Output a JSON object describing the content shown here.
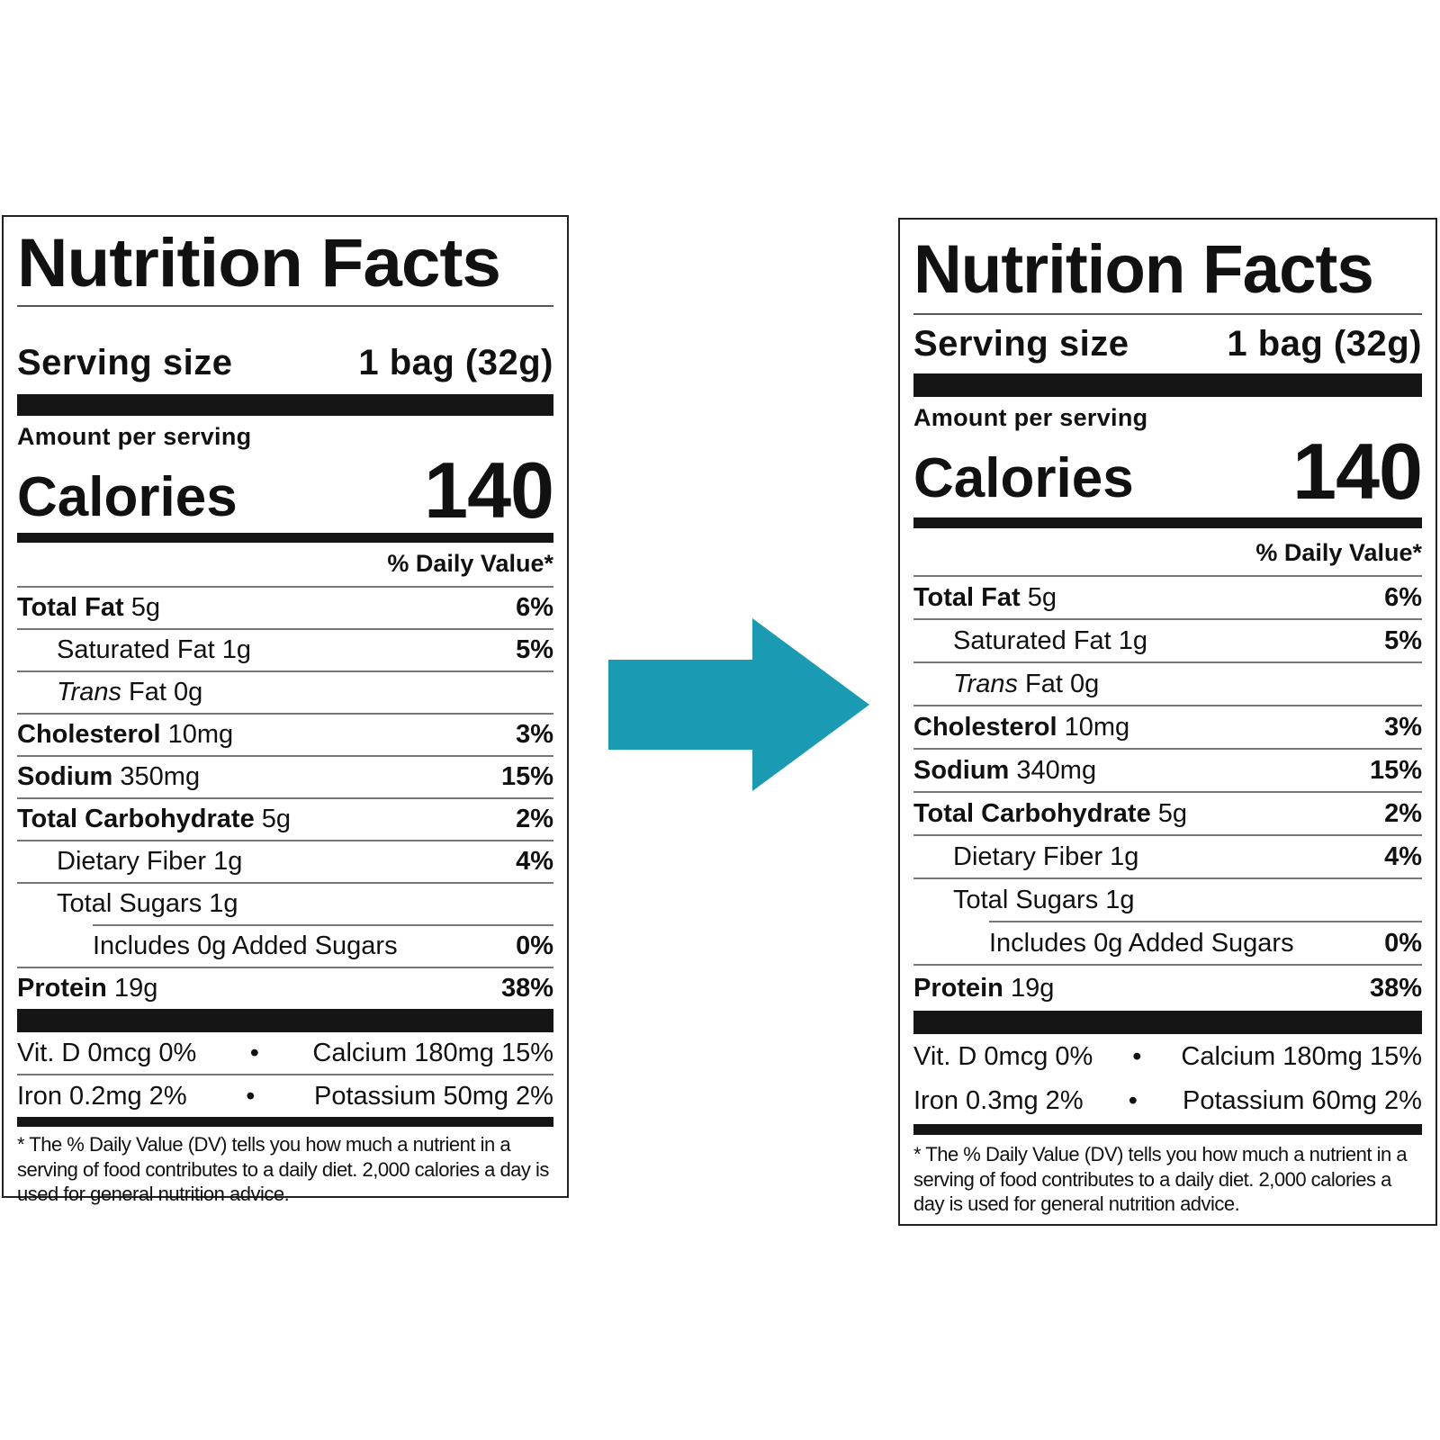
{
  "arrow_color": "#1b9ab3",
  "labels": [
    {
      "title": "Nutrition Facts",
      "serving_label": "Serving size",
      "serving_value": "1 bag (32g)",
      "amount_per_serving": "Amount per serving",
      "calories_label": "Calories",
      "calories_value": "140",
      "dv_header": "% Daily Value*",
      "rows": {
        "total_fat": {
          "name": "Total Fat",
          "amount": "5g",
          "dv": "6%"
        },
        "saturated_fat": {
          "name": "Saturated Fat",
          "amount": "1g",
          "dv": "5%"
        },
        "trans_fat": {
          "name_italic": "Trans",
          "name_rest": "Fat",
          "amount": "0g"
        },
        "cholesterol": {
          "name": "Cholesterol",
          "amount": "10mg",
          "dv": "3%"
        },
        "sodium": {
          "name": "Sodium",
          "amount": "350mg",
          "dv": "15%"
        },
        "total_carb": {
          "name": "Total Carbohydrate",
          "amount": "5g",
          "dv": "2%"
        },
        "fiber": {
          "name": "Dietary Fiber",
          "amount": "1g",
          "dv": "4%"
        },
        "sugars": {
          "name": "Total Sugars",
          "amount": "1g"
        },
        "added_sugars": {
          "name": "Includes 0g Added Sugars",
          "dv": "0%"
        },
        "protein": {
          "name": "Protein",
          "amount": "19g",
          "dv": "38%"
        }
      },
      "vitamins": [
        {
          "left": "Vit. D 0mcg 0%",
          "right": "Calcium 180mg 15%"
        },
        {
          "left": "Iron 0.2mg 2%",
          "right": "Potassium 50mg 2%"
        }
      ],
      "bullet": "•",
      "footnote": "* The % Daily Value (DV) tells you how much a nutrient in a serving of food contributes to a daily diet. 2,000 calories a day is used for general nutrition advice."
    },
    {
      "title": "Nutrition Facts",
      "serving_label": "Serving size",
      "serving_value": "1 bag (32g)",
      "amount_per_serving": "Amount per serving",
      "calories_label": "Calories",
      "calories_value": "140",
      "dv_header": "% Daily Value*",
      "rows": {
        "total_fat": {
          "name": "Total Fat",
          "amount": "5g",
          "dv": "6%"
        },
        "saturated_fat": {
          "name": "Saturated Fat",
          "amount": "1g",
          "dv": "5%"
        },
        "trans_fat": {
          "name_italic": "Trans",
          "name_rest": "Fat",
          "amount": "0g"
        },
        "cholesterol": {
          "name": "Cholesterol",
          "amount": "10mg",
          "dv": "3%"
        },
        "sodium": {
          "name": "Sodium",
          "amount": "340mg",
          "dv": "15%"
        },
        "total_carb": {
          "name": "Total Carbohydrate",
          "amount": "5g",
          "dv": "2%"
        },
        "fiber": {
          "name": "Dietary Fiber",
          "amount": "1g",
          "dv": "4%"
        },
        "sugars": {
          "name": "Total Sugars",
          "amount": "1g"
        },
        "added_sugars": {
          "name": "Includes 0g Added Sugars",
          "dv": "0%"
        },
        "protein": {
          "name": "Protein",
          "amount": "19g",
          "dv": "38%"
        }
      },
      "vitamins": [
        {
          "left": "Vit. D 0mcg 0%",
          "right": "Calcium 180mg 15%"
        },
        {
          "left": "Iron 0.3mg 2%",
          "right": "Potassium 60mg 2%"
        }
      ],
      "bullet": "•",
      "footnote": "* The % Daily Value (DV) tells you how much a nutrient in a serving of food contributes to a daily diet. 2,000 calories a day is used for general nutrition advice."
    }
  ]
}
